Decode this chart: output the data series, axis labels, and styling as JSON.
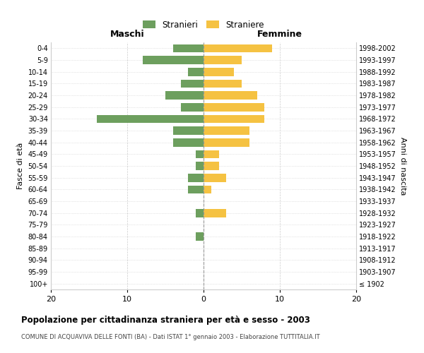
{
  "age_groups": [
    "100+",
    "95-99",
    "90-94",
    "85-89",
    "80-84",
    "75-79",
    "70-74",
    "65-69",
    "60-64",
    "55-59",
    "50-54",
    "45-49",
    "40-44",
    "35-39",
    "30-34",
    "25-29",
    "20-24",
    "15-19",
    "10-14",
    "5-9",
    "0-4"
  ],
  "birth_years": [
    "≤ 1902",
    "1903-1907",
    "1908-1912",
    "1913-1917",
    "1918-1922",
    "1923-1927",
    "1928-1932",
    "1933-1937",
    "1938-1942",
    "1943-1947",
    "1948-1952",
    "1953-1957",
    "1958-1962",
    "1963-1967",
    "1968-1972",
    "1973-1977",
    "1978-1982",
    "1983-1987",
    "1988-1992",
    "1993-1997",
    "1998-2002"
  ],
  "males": [
    0,
    0,
    0,
    0,
    1,
    0,
    1,
    0,
    2,
    2,
    1,
    1,
    4,
    4,
    14,
    3,
    5,
    3,
    2,
    8,
    4
  ],
  "females": [
    0,
    0,
    0,
    0,
    0,
    0,
    3,
    0,
    1,
    3,
    2,
    2,
    6,
    6,
    8,
    8,
    7,
    5,
    4,
    5,
    9
  ],
  "male_color": "#6d9f5e",
  "female_color": "#f5c242",
  "title": "Popolazione per cittadinanza straniera per età e sesso - 2003",
  "subtitle": "COMUNE DI ACQUAVIVA DELLE FONTI (BA) - Dati ISTAT 1° gennaio 2003 - Elaborazione TUTTITALIA.IT",
  "xlabel_left": "Maschi",
  "xlabel_right": "Femmine",
  "ylabel_left": "Fasce di età",
  "ylabel_right": "Anni di nascita",
  "legend_male": "Stranieri",
  "legend_female": "Straniere",
  "xlim": 20,
  "background_color": "#ffffff",
  "grid_color": "#cccccc"
}
